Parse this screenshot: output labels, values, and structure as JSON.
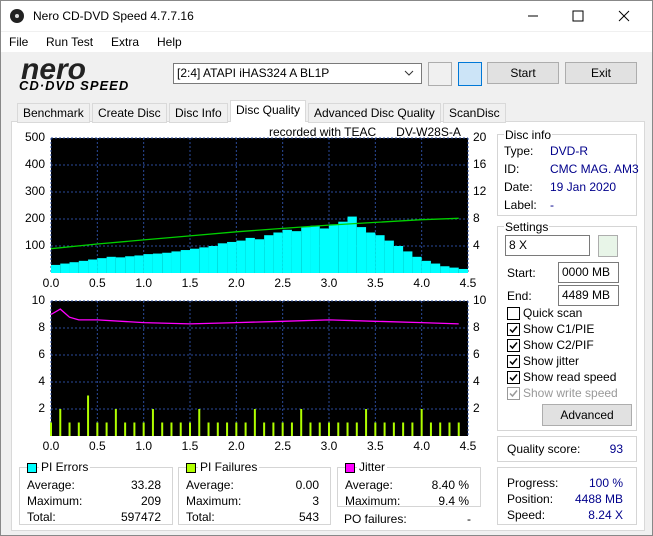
{
  "window": {
    "title": "Nero CD-DVD Speed 4.7.7.16"
  },
  "menu": [
    "File",
    "Run Test",
    "Extra",
    "Help"
  ],
  "logo": {
    "brand": "nero",
    "product": "CD·DVD SPEED"
  },
  "toolbar": {
    "drive": "[2:4]   ATAPI iHAS324   A BL1P",
    "start": "Start",
    "exit": "Exit"
  },
  "tabs": [
    "Benchmark",
    "Create Disc",
    "Disc Info",
    "Disc Quality",
    "Advanced Disc Quality",
    "ScanDisc"
  ],
  "active_tab": "Disc Quality",
  "recorded_with": "recorded with TEAC      DV-W28S-A",
  "chart_data": [
    {
      "type": "bar",
      "grid": true,
      "xlim": [
        0,
        4.5
      ],
      "ylim": [
        0,
        500
      ],
      "y2lim": [
        0,
        20
      ],
      "xticks": [
        {
          "value": 0,
          "label": "0.0"
        },
        0.5,
        {
          "value": 1,
          "label": "1.0"
        },
        1.5,
        {
          "value": 2,
          "label": "2.0"
        },
        2.5,
        {
          "value": 3,
          "label": "3.0"
        },
        3.5,
        {
          "value": 4,
          "label": "4.0"
        },
        4.5
      ],
      "yticks": [
        100,
        200,
        300,
        400,
        500
      ],
      "y2ticks": [
        4,
        8,
        12,
        16,
        20
      ],
      "series": [
        {
          "name": "PI Errors",
          "type": "bar",
          "color": "#00ffff",
          "x": [
            0,
            0.1,
            0.2,
            0.3,
            0.4,
            0.5,
            0.6,
            0.7,
            0.8,
            0.9,
            1,
            1.1,
            1.2,
            1.3,
            1.4,
            1.5,
            1.6,
            1.7,
            1.8,
            1.9,
            2,
            2.1,
            2.2,
            2.3,
            2.4,
            2.5,
            2.6,
            2.7,
            2.8,
            2.9,
            3,
            3.1,
            3.2,
            3.3,
            3.4,
            3.5,
            3.6,
            3.7,
            3.8,
            3.9,
            4,
            4.1,
            4.2,
            4.3,
            4.4
          ],
          "values": [
            30,
            35,
            40,
            45,
            50,
            55,
            60,
            58,
            62,
            65,
            70,
            72,
            75,
            80,
            85,
            90,
            95,
            100,
            110,
            115,
            120,
            130,
            125,
            140,
            150,
            160,
            155,
            170,
            175,
            165,
            180,
            190,
            209,
            170,
            150,
            140,
            120,
            100,
            80,
            60,
            45,
            35,
            25,
            20,
            15
          ]
        },
        {
          "type": "line",
          "axis": "y2",
          "color": "#00d000",
          "x": [
            0,
            0.5,
            1,
            1.5,
            2,
            2.5,
            3,
            3.5,
            4,
            4.4
          ],
          "values": [
            3.6,
            4.3,
            4.9,
            5.5,
            6.1,
            6.6,
            7.1,
            7.5,
            7.9,
            8.1
          ]
        }
      ]
    },
    {
      "type": "bar",
      "grid": true,
      "xlim": [
        0,
        4.5
      ],
      "ylim": [
        0,
        10
      ],
      "y2lim": [
        0,
        10
      ],
      "xticks": [
        {
          "value": 0,
          "label": "0.0"
        },
        0.5,
        {
          "value": 1,
          "label": "1.0"
        },
        1.5,
        {
          "value": 2,
          "label": "2.0"
        },
        2.5,
        {
          "value": 3,
          "label": "3.0"
        },
        3.5,
        {
          "value": 4,
          "label": "4.0"
        },
        4.5
      ],
      "yticks": [
        2,
        4,
        6,
        8,
        10
      ],
      "y2ticks": [
        2,
        4,
        6,
        8,
        10
      ],
      "series": [
        {
          "name": "PI Failures",
          "type": "bar",
          "color": "#b0ff00",
          "x": [
            0,
            0.1,
            0.2,
            0.3,
            0.4,
            0.5,
            0.6,
            0.7,
            0.8,
            0.9,
            1,
            1.1,
            1.2,
            1.3,
            1.4,
            1.5,
            1.6,
            1.7,
            1.8,
            1.9,
            2,
            2.1,
            2.2,
            2.3,
            2.4,
            2.5,
            2.6,
            2.7,
            2.8,
            2.9,
            3,
            3.1,
            3.2,
            3.3,
            3.4,
            3.5,
            3.6,
            3.7,
            3.8,
            3.9,
            4,
            4.1,
            4.2,
            4.3,
            4.4
          ],
          "values": [
            1,
            2,
            1,
            1,
            3,
            1,
            1,
            2,
            1,
            1,
            1,
            2,
            1,
            1,
            1,
            1,
            2,
            1,
            1,
            1,
            1,
            1,
            2,
            1,
            1,
            1,
            1,
            2,
            1,
            1,
            1,
            1,
            1,
            1,
            2,
            1,
            1,
            1,
            1,
            1,
            2,
            1,
            1,
            1,
            1
          ]
        },
        {
          "name": "Jitter",
          "type": "line",
          "axis": "y2",
          "color": "#ff00ff",
          "x": [
            0,
            0.1,
            0.2,
            0.3,
            0.5,
            1,
            1.5,
            2,
            2.5,
            3,
            3.5,
            4,
            4.4
          ],
          "values": [
            9.0,
            9.4,
            8.8,
            8.6,
            8.6,
            8.4,
            8.3,
            8.4,
            8.5,
            8.6,
            8.5,
            8.4,
            8.3
          ]
        }
      ]
    }
  ],
  "stats": [
    {
      "rows": [
        [
          "Average:",
          "33.28"
        ],
        [
          "Maximum:",
          "209"
        ],
        [
          "Total:",
          "597472"
        ]
      ]
    },
    {
      "rows": [
        [
          "Average:",
          "0.00"
        ],
        [
          "Maximum:",
          "3"
        ],
        [
          "Total:",
          "543"
        ]
      ]
    },
    {
      "rows": [
        [
          "Average:",
          "8.40 %"
        ],
        [
          "Maximum:",
          "9.4 %"
        ]
      ]
    }
  ],
  "po_failures": {
    "label": "PO failures:",
    "value": "-"
  },
  "disc_info": {
    "title": "Disc info",
    "rows": [
      [
        "Type:",
        "DVD-R"
      ],
      [
        "ID:",
        "CMC MAG. AM3"
      ],
      [
        "Date:",
        "19 Jan 2020"
      ],
      [
        "Label:",
        "-"
      ]
    ]
  },
  "settings": {
    "title": "Settings",
    "speed": "8 X",
    "start_label": "Start:",
    "start": "0000 MB",
    "end_label": "End:",
    "end": "4489 MB",
    "checkboxes": [
      {
        "label": "Quick scan",
        "checked": false,
        "enabled": true
      },
      {
        "label": "Show C1/PIE",
        "checked": true,
        "enabled": true
      },
      {
        "label": "Show C2/PIF",
        "checked": true,
        "enabled": true
      },
      {
        "label": "Show jitter",
        "checked": true,
        "enabled": true
      },
      {
        "label": "Show read speed",
        "checked": true,
        "enabled": true
      },
      {
        "label": "Show write speed",
        "checked": true,
        "enabled": false
      }
    ],
    "advanced": "Advanced"
  },
  "quality": {
    "label": "Quality score:",
    "value": "93"
  },
  "progress": {
    "rows": [
      [
        "Progress:",
        "100 %"
      ],
      [
        "Position:",
        "4488 MB"
      ],
      [
        "Speed:",
        "8.24 X"
      ]
    ]
  }
}
